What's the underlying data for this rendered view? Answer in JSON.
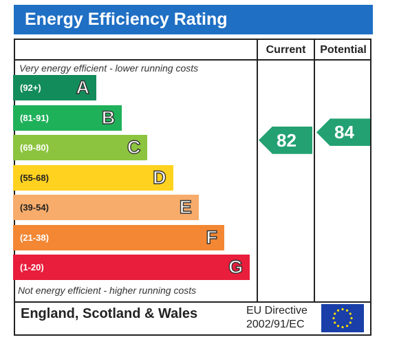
{
  "title": "Energy Efficiency Rating",
  "columns": {
    "current": "Current",
    "potential": "Potential"
  },
  "top_caption": "Very energy efficient - lower running costs",
  "bottom_caption": "Not energy efficient - higher running costs",
  "footer": {
    "region": "England, Scotland & Wales",
    "directive_line1": "EU Directive",
    "directive_line2": "2002/91/EC"
  },
  "chart_data": {
    "type": "bar",
    "title": "Energy Efficiency Rating",
    "bands": [
      {
        "range": "(92+)",
        "letter": "A",
        "color": "#138c5b"
      },
      {
        "range": "(81-91)",
        "letter": "B",
        "color": "#1fb15a"
      },
      {
        "range": "(69-80)",
        "letter": "C",
        "color": "#8cc43f"
      },
      {
        "range": "(55-68)",
        "letter": "D",
        "color": "#ffd21f"
      },
      {
        "range": "(39-54)",
        "letter": "E",
        "color": "#f7ac6b"
      },
      {
        "range": "(21-38)",
        "letter": "F",
        "color": "#f38733"
      },
      {
        "range": "(1-20)",
        "letter": "G",
        "color": "#e81e3c"
      }
    ],
    "current": 82,
    "potential": 84,
    "arrow_color": "#23a173"
  },
  "eu_flag_icon": "eu-flag-icon"
}
